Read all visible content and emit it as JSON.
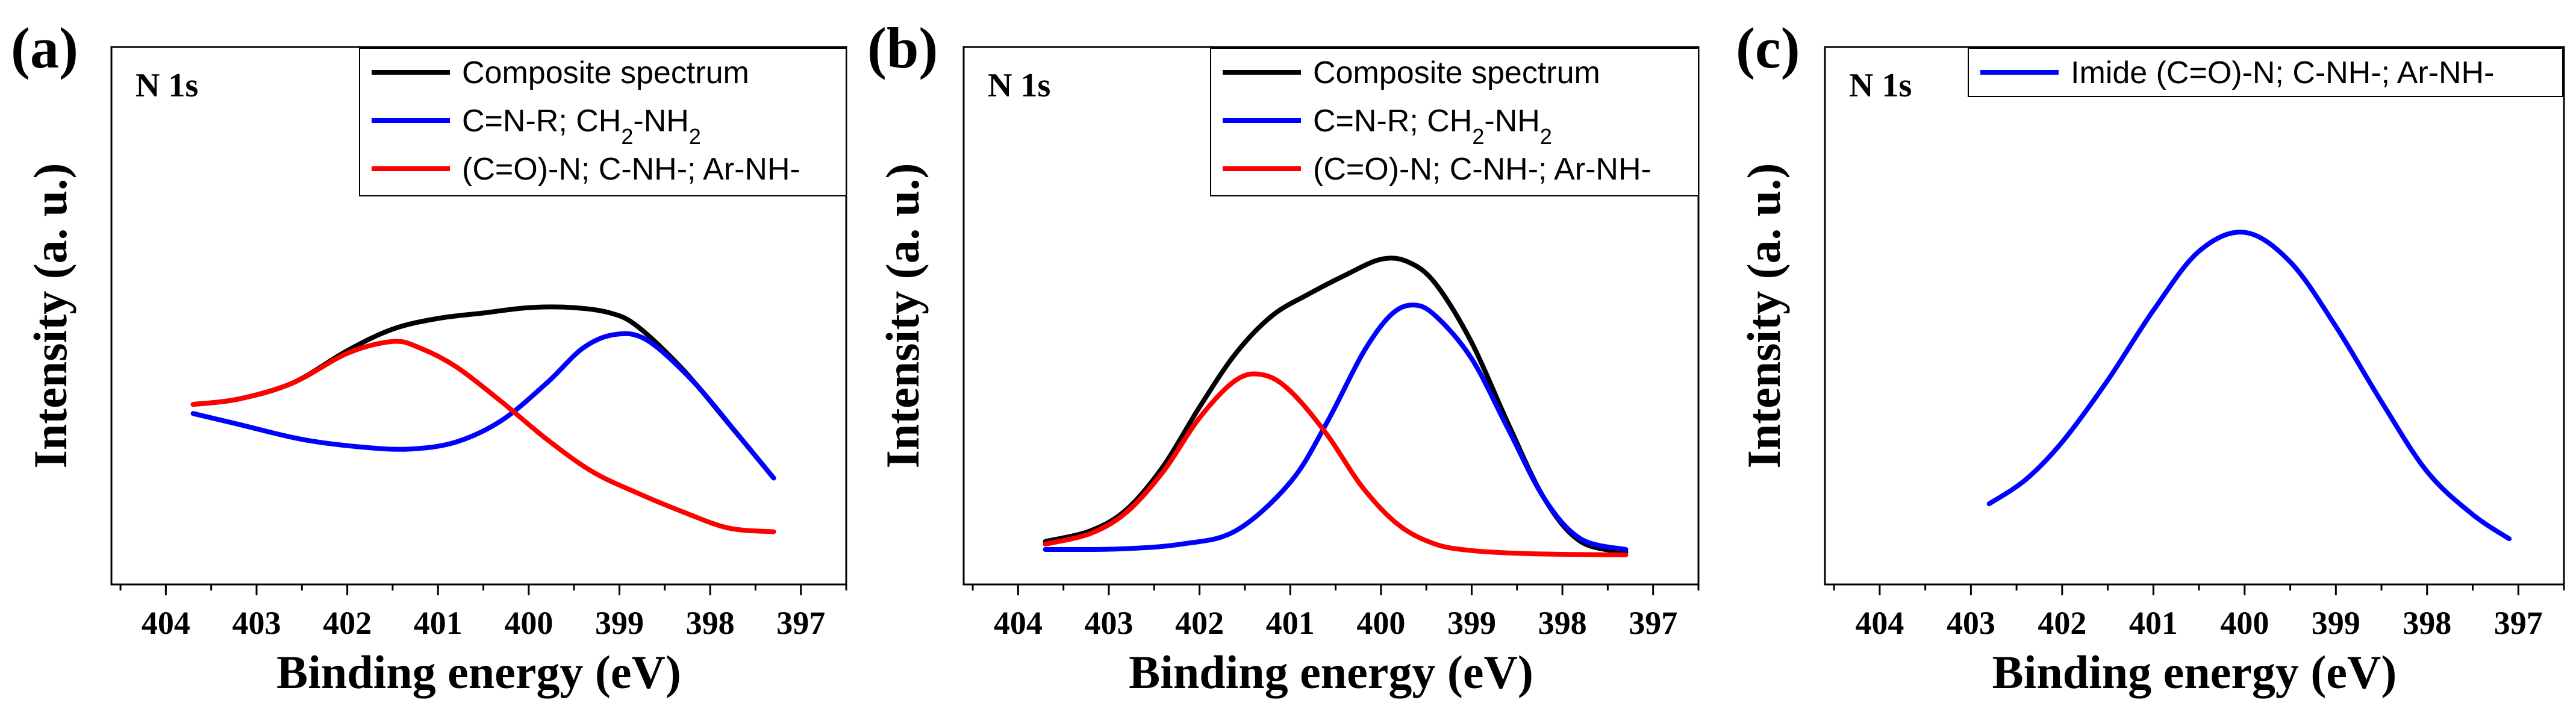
{
  "chart_data": [
    {
      "panel": "(a)",
      "type": "line",
      "corner_label": "N 1s",
      "xlabel": "Binding energy (eV)",
      "ylabel": "Intensity (a. u.)",
      "xlim": [
        404.6,
        396.5
      ],
      "ylim": [
        0,
        1
      ],
      "xticks": [
        404,
        403,
        402,
        401,
        400,
        399,
        398,
        397
      ],
      "legend": [
        {
          "text": "Composite spectrum",
          "color": "#000000"
        },
        {
          "text": "C=N-R; CH2-NH2",
          "parts": [
            [
              "C=N-R; CH",
              ""
            ],
            [
              "2",
              "sub"
            ],
            [
              "-NH",
              ""
            ],
            [
              "2",
              "sub"
            ]
          ],
          "color": "#0000ff"
        },
        {
          "text": "(C=O)-N; C-NH-; Ar-NH-",
          "color": "#ff0000"
        }
      ],
      "series": [
        {
          "name": "Composite spectrum",
          "color": "#000000",
          "x": [
            403.7,
            403.2,
            402.6,
            402.0,
            401.5,
            401.0,
            400.5,
            400.0,
            399.5,
            399.1,
            398.8,
            398.3,
            397.8,
            397.3
          ],
          "y": [
            0.335,
            0.345,
            0.375,
            0.435,
            0.475,
            0.495,
            0.505,
            0.515,
            0.515,
            0.505,
            0.48,
            0.4,
            0.3,
            0.198
          ]
        },
        {
          "name": "C=N-R; CH2-NH2",
          "color": "#0000ff",
          "x": [
            403.7,
            403.2,
            402.5,
            401.8,
            401.3,
            400.8,
            400.3,
            399.8,
            399.4,
            399.05,
            398.7,
            398.2,
            397.7,
            397.3
          ],
          "y": [
            0.318,
            0.298,
            0.27,
            0.255,
            0.252,
            0.265,
            0.305,
            0.375,
            0.44,
            0.465,
            0.455,
            0.38,
            0.28,
            0.198
          ]
        },
        {
          "name": "(C=O)-N; C-NH-; Ar-NH-",
          "color": "#ff0000",
          "x": [
            403.7,
            403.2,
            402.6,
            402.0,
            401.5,
            401.2,
            400.8,
            400.3,
            399.8,
            399.3,
            398.8,
            398.3,
            397.8,
            397.3
          ],
          "y": [
            0.335,
            0.345,
            0.375,
            0.43,
            0.452,
            0.44,
            0.405,
            0.34,
            0.27,
            0.21,
            0.17,
            0.135,
            0.105,
            0.098
          ]
        }
      ]
    },
    {
      "panel": "(b)",
      "type": "line",
      "corner_label": "N 1s",
      "xlabel": "Binding energy (eV)",
      "ylabel": "Intensity (a. u.)",
      "xlim": [
        404.6,
        396.5
      ],
      "ylim": [
        0,
        1
      ],
      "xticks": [
        404,
        403,
        402,
        401,
        400,
        399,
        398,
        397
      ],
      "legend": [
        {
          "text": "Composite spectrum",
          "color": "#000000"
        },
        {
          "text": "C=N-R; CH2-NH2",
          "parts": [
            [
              "C=N-R; CH",
              ""
            ],
            [
              "2",
              "sub"
            ],
            [
              "-NH",
              ""
            ],
            [
              "2",
              "sub"
            ]
          ],
          "color": "#0000ff"
        },
        {
          "text": "(C=O)-N; C-NH-; Ar-NH-",
          "color": "#ff0000"
        }
      ],
      "series": [
        {
          "name": "Composite spectrum",
          "color": "#000000",
          "x": [
            403.7,
            403.2,
            402.8,
            402.4,
            402.0,
            401.6,
            401.2,
            400.8,
            400.4,
            400.0,
            399.7,
            399.4,
            399.0,
            398.6,
            398.2,
            397.8,
            397.3
          ],
          "y": [
            0.08,
            0.1,
            0.14,
            0.22,
            0.33,
            0.43,
            0.5,
            0.54,
            0.575,
            0.605,
            0.6,
            0.56,
            0.45,
            0.3,
            0.16,
            0.08,
            0.06
          ]
        },
        {
          "name": "C=N-R; CH2-NH2",
          "color": "#0000ff",
          "x": [
            403.7,
            402.9,
            402.2,
            401.6,
            401.0,
            400.6,
            400.2,
            399.9,
            399.65,
            399.4,
            399.0,
            398.6,
            398.2,
            397.8,
            397.3
          ],
          "y": [
            0.065,
            0.066,
            0.075,
            0.1,
            0.19,
            0.3,
            0.43,
            0.5,
            0.52,
            0.5,
            0.42,
            0.29,
            0.16,
            0.085,
            0.065
          ]
        },
        {
          "name": "(C=O)-N; C-NH-; Ar-NH-",
          "color": "#ff0000",
          "x": [
            403.7,
            403.2,
            402.8,
            402.4,
            402.0,
            401.6,
            401.3,
            401.0,
            400.6,
            400.2,
            399.8,
            399.4,
            399.0,
            398.5,
            398.0,
            397.3
          ],
          "y": [
            0.075,
            0.095,
            0.135,
            0.21,
            0.31,
            0.38,
            0.39,
            0.36,
            0.28,
            0.18,
            0.11,
            0.075,
            0.063,
            0.058,
            0.056,
            0.055
          ]
        }
      ]
    },
    {
      "panel": "(c)",
      "type": "line",
      "corner_label": "N 1s",
      "xlabel": "Binding energy (eV)",
      "ylabel": "Intensity (a. u.)",
      "xlim": [
        404.6,
        396.5
      ],
      "ylim": [
        0,
        1
      ],
      "xticks": [
        404,
        403,
        402,
        401,
        400,
        399,
        398,
        397
      ],
      "legend": [
        {
          "text": "Imide (C=O)-N; C-NH-; Ar-NH-",
          "color": "#0000ff"
        }
      ],
      "series": [
        {
          "name": "Imide (C=O)-N; C-NH-; Ar-NH-",
          "color": "#0000ff",
          "x": [
            402.8,
            402.4,
            402.0,
            401.5,
            401.0,
            400.5,
            400.0,
            399.5,
            399.0,
            398.5,
            398.0,
            397.5,
            397.1
          ],
          "y": [
            0.15,
            0.195,
            0.265,
            0.38,
            0.51,
            0.62,
            0.655,
            0.6,
            0.48,
            0.34,
            0.21,
            0.13,
            0.085
          ]
        }
      ]
    }
  ]
}
